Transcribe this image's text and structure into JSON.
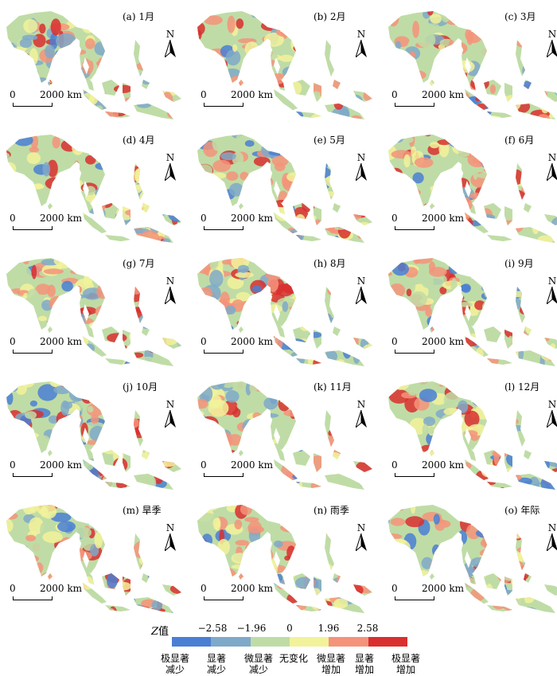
{
  "panels": [
    {
      "label": "(a) 1月"
    },
    {
      "label": "(b) 2月"
    },
    {
      "label": "(c) 3月"
    },
    {
      "label": "(d) 4月"
    },
    {
      "label": "(e) 5月"
    },
    {
      "label": "(f) 6月"
    },
    {
      "label": "(g) 7月"
    },
    {
      "label": "(h) 8月"
    },
    {
      "label": "(i) 9月"
    },
    {
      "label": "(j) 10月"
    },
    {
      "label": "(k) 11月"
    },
    {
      "label": "(l) 12月"
    },
    {
      "label": "(m) 旱季"
    },
    {
      "label": "(n) 雨季"
    },
    {
      "label": "(o) 年际"
    }
  ],
  "map_common": {
    "north_label": "N",
    "scale_zero": "0",
    "scale_distance": "2000 km"
  },
  "legend": {
    "title_italic": "Z",
    "title_rest": "值",
    "ticks": [
      "−2.58",
      "−1.96",
      "0",
      "1.96",
      "2.58"
    ],
    "colors": [
      "#4a7fd4",
      "#7fa9c9",
      "#bfdca6",
      "#f2f29a",
      "#f4937a",
      "#d92f2f"
    ],
    "classes": [
      {
        "line1": "极显著",
        "line2": "减少"
      },
      {
        "line1": "显著",
        "line2": "减少"
      },
      {
        "line1": "微显著",
        "line2": "减少"
      },
      {
        "line1": "无变化",
        "line2": ""
      },
      {
        "line1": "微显著",
        "line2": "增加"
      },
      {
        "line1": "显著",
        "line2": "增加"
      },
      {
        "line1": "极显著",
        "line2": "增加"
      }
    ]
  }
}
